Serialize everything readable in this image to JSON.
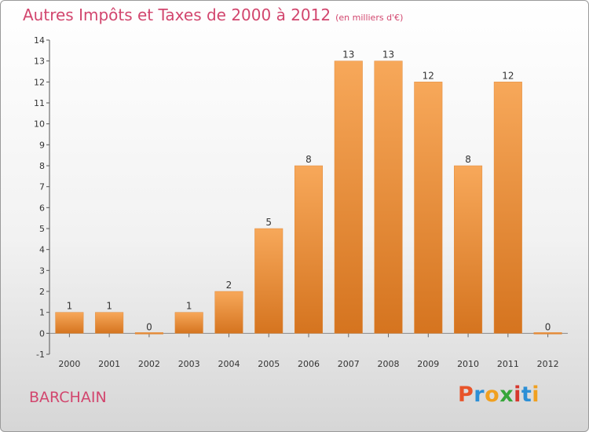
{
  "title": "Autres Impôts et Taxes de 2000 à 2012",
  "unit": "(en milliers d'€)",
  "commune": "BARCHAIN",
  "logo": {
    "text": "Proxiti",
    "letters": [
      "P",
      "r",
      "o",
      "x",
      "i",
      "t",
      "i"
    ],
    "colors": [
      "#e8542a",
      "#2b8fd6",
      "#f0a020",
      "#36a63a",
      "#d6382e",
      "#2b8fd6",
      "#f0a020"
    ]
  },
  "chart_data": {
    "type": "bar",
    "categories": [
      "2000",
      "2001",
      "2002",
      "2003",
      "2004",
      "2005",
      "2006",
      "2007",
      "2008",
      "2009",
      "2010",
      "2011",
      "2012"
    ],
    "values": [
      1,
      1,
      0,
      1,
      2,
      5,
      8,
      13,
      13,
      12,
      8,
      12,
      0
    ],
    "data_labels": [
      "1",
      "1",
      "0",
      "1",
      "2",
      "5",
      "8",
      "13",
      "13",
      "12",
      "8",
      "12",
      "0"
    ],
    "ylim": [
      -1,
      14
    ],
    "yticks": [
      -1,
      0,
      1,
      2,
      3,
      4,
      5,
      6,
      7,
      8,
      9,
      10,
      11,
      12,
      13,
      14
    ],
    "ytick_labels": [
      "-1",
      "0",
      "1",
      "2",
      "3",
      "4",
      "5",
      "6",
      "7",
      "8",
      "9",
      "10",
      "11",
      "12",
      "13",
      "14"
    ],
    "grid": false,
    "bar_color": "#f0963c"
  }
}
